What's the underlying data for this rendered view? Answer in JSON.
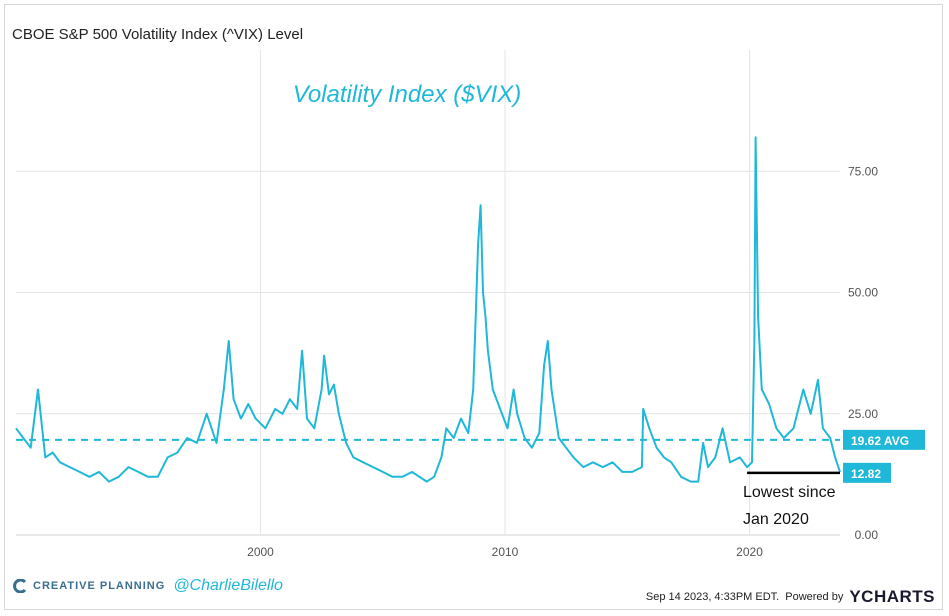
{
  "page": {
    "title": "CBOE S&P 500 Volatility Index (^VIX) Level"
  },
  "chart_data": {
    "type": "line",
    "title": "Volatility Index ($VIX)",
    "xlabel": "",
    "ylabel": "",
    "xlim": [
      1990.0,
      2023.7
    ],
    "ylim": [
      0,
      100
    ],
    "x_ticks": [
      {
        "value": 2000,
        "label": "2000"
      },
      {
        "value": 2010,
        "label": "2010"
      },
      {
        "value": 2020,
        "label": "2020"
      }
    ],
    "y_ticks": [
      {
        "value": 0,
        "label": "0.00"
      },
      {
        "value": 25,
        "label": "25.00"
      },
      {
        "value": 50,
        "label": "50.00"
      },
      {
        "value": 75,
        "label": "75.00"
      }
    ],
    "series": [
      {
        "name": "VIX",
        "color": "#1fb8d8",
        "x": [
          1990.0,
          1990.3,
          1990.6,
          1990.9,
          1991.2,
          1991.5,
          1991.8,
          1992.2,
          1992.6,
          1993.0,
          1993.4,
          1993.8,
          1994.2,
          1994.6,
          1995.0,
          1995.4,
          1995.8,
          1996.2,
          1996.6,
          1997.0,
          1997.4,
          1997.8,
          1998.2,
          1998.5,
          1998.7,
          1998.9,
          1999.2,
          1999.5,
          1999.8,
          2000.2,
          2000.6,
          2000.9,
          2001.2,
          2001.5,
          2001.7,
          2001.9,
          2002.2,
          2002.5,
          2002.6,
          2002.8,
          2003.0,
          2003.2,
          2003.5,
          2003.8,
          2004.2,
          2004.6,
          2005.0,
          2005.4,
          2005.8,
          2006.2,
          2006.5,
          2006.8,
          2007.1,
          2007.4,
          2007.6,
          2007.9,
          2008.2,
          2008.5,
          2008.7,
          2008.8,
          2008.9,
          2009.0,
          2009.1,
          2009.2,
          2009.3,
          2009.5,
          2009.8,
          2010.1,
          2010.35,
          2010.5,
          2010.8,
          2011.1,
          2011.4,
          2011.6,
          2011.75,
          2011.9,
          2012.2,
          2012.5,
          2012.8,
          2013.2,
          2013.6,
          2014.0,
          2014.4,
          2014.8,
          2015.2,
          2015.6,
          2015.65,
          2015.9,
          2016.2,
          2016.5,
          2016.8,
          2017.2,
          2017.6,
          2017.9,
          2018.1,
          2018.3,
          2018.6,
          2018.9,
          2019.2,
          2019.6,
          2019.9,
          2020.1,
          2020.2,
          2020.25,
          2020.35,
          2020.5,
          2020.8,
          2021.1,
          2021.4,
          2021.8,
          2022.2,
          2022.5,
          2022.8,
          2023.0,
          2023.3,
          2023.5,
          2023.7
        ],
        "y": [
          22,
          20,
          18,
          30,
          16,
          17,
          15,
          14,
          13,
          12,
          13,
          11,
          12,
          14,
          13,
          12,
          12,
          16,
          17,
          20,
          19,
          25,
          19,
          30,
          40,
          28,
          24,
          27,
          24,
          22,
          26,
          25,
          28,
          26,
          38,
          24,
          22,
          30,
          37,
          29,
          31,
          25,
          19,
          16,
          15,
          14,
          13,
          12,
          12,
          13,
          12,
          11,
          12,
          16,
          22,
          20,
          24,
          21,
          30,
          45,
          60,
          68,
          50,
          45,
          38,
          30,
          26,
          22,
          30,
          25,
          20,
          18,
          21,
          35,
          40,
          30,
          20,
          18,
          16,
          14,
          15,
          14,
          15,
          13,
          13,
          14,
          26,
          22,
          18,
          16,
          15,
          12,
          11,
          11,
          19,
          14,
          16,
          22,
          15,
          16,
          14,
          15,
          40,
          82,
          45,
          30,
          27,
          22,
          20,
          22,
          30,
          25,
          32,
          22,
          20,
          16,
          13
        ]
      }
    ],
    "average": {
      "value": 19.62,
      "label": "19.62 AVG"
    },
    "last": {
      "value": 12.82,
      "label": "12.82"
    },
    "annotation": {
      "line1": "Lowest since",
      "line2": "Jan 2020"
    }
  },
  "footer": {
    "brand": "CREATIVE PLANNING",
    "handle": "@CharlieBilello",
    "timestamp": "Sep 14 2023, 4:33PM EDT.",
    "powered_by": "Powered by",
    "ycharts_logo": "YCHARTS",
    "brand_icon": "creative-planning-logo"
  }
}
